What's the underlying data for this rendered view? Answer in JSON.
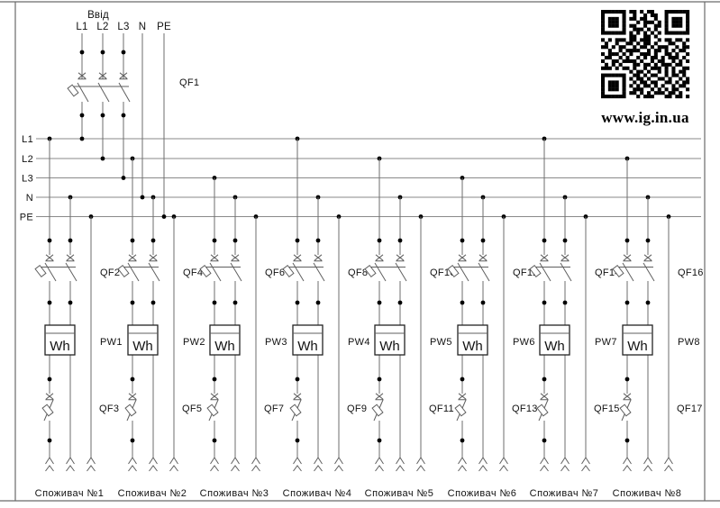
{
  "drawing": {
    "input": {
      "title": "Ввід",
      "terminals": [
        "L1",
        "L2",
        "L3",
        "N",
        "PE"
      ],
      "main_breaker": "QF1"
    },
    "buses": [
      "L1",
      "L2",
      "L3",
      "N",
      "PE"
    ],
    "consumers": [
      {
        "name": "Споживач №1",
        "phase_bus": "L1",
        "breaker_top": "QF2",
        "meter": "PW1",
        "breaker_bottom": "QF3"
      },
      {
        "name": "Споживач №2",
        "phase_bus": "L2",
        "breaker_top": "QF4",
        "meter": "PW2",
        "breaker_bottom": "QF5"
      },
      {
        "name": "Споживач №3",
        "phase_bus": "L3",
        "breaker_top": "QF6",
        "meter": "PW3",
        "breaker_bottom": "QF7"
      },
      {
        "name": "Споживач №4",
        "phase_bus": "L1",
        "breaker_top": "QF8",
        "meter": "PW4",
        "breaker_bottom": "QF9"
      },
      {
        "name": "Споживач №5",
        "phase_bus": "L2",
        "breaker_top": "QF10",
        "meter": "PW5",
        "breaker_bottom": "QF11"
      },
      {
        "name": "Споживач №6",
        "phase_bus": "L3",
        "breaker_top": "QF12",
        "meter": "PW6",
        "breaker_bottom": "QF13"
      },
      {
        "name": "Споживач №7",
        "phase_bus": "L1",
        "breaker_top": "QF14",
        "meter": "PW7",
        "breaker_bottom": "QF15"
      },
      {
        "name": "Споживач №8",
        "phase_bus": "L2",
        "breaker_top": "QF16",
        "meter": "PW8",
        "breaker_bottom": "QF17"
      }
    ],
    "meter_label": "Wh",
    "website": "www.ig.in.ua",
    "colors": {
      "line": "#6e6e6e",
      "bus": "#8a8a8a",
      "text": "#111111",
      "qr": "#000000"
    },
    "qr_matrix": [
      "1111111011010110001111111",
      "1000001001001011001000001",
      "1011101011011001001011101",
      "1011101000101110101011101",
      "1011101011001001101011101",
      "1000001001110101001000001",
      "1111111010101010101111111",
      "0000000011001101000000000",
      "1010111011011100101101101",
      "0100100110101101000110010",
      "1101011001011010111001011",
      "0010010111100101101010110",
      "1011101010011101001101001",
      "0110010100101011010111010",
      "1001101111010010110010101",
      "0101010001101101011101100",
      "1110101101001011101010011",
      "0000000010110100101010110",
      "1111111001101011001011010",
      "1000001010110100110100101",
      "1011101001011011001101011",
      "1011101010101101010010110",
      "1011101001110010101011001",
      "1000001011010101110110100",
      "1111111000101110001101101"
    ]
  }
}
